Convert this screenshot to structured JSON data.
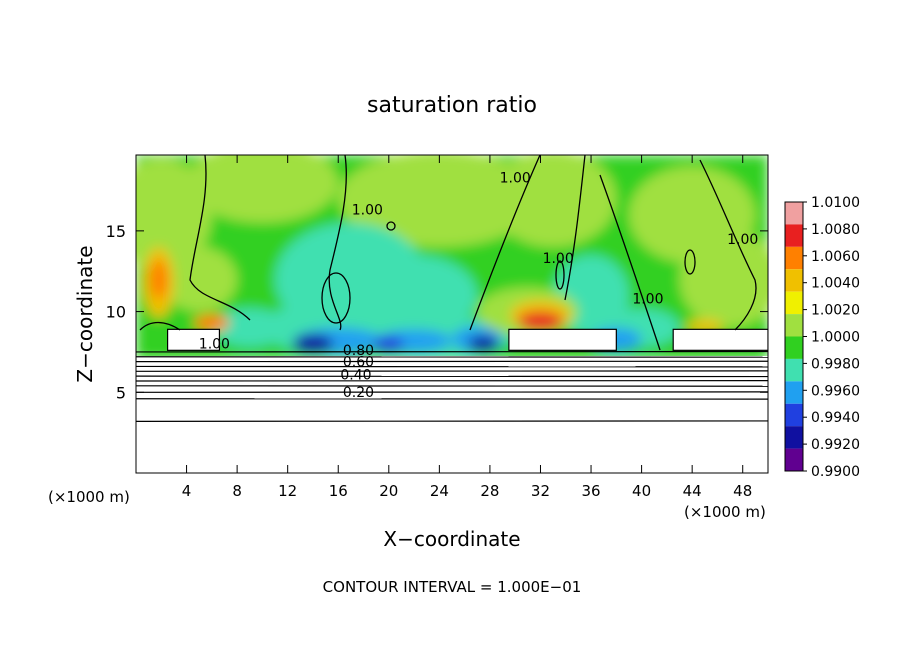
{
  "chart_data": {
    "type": "heatmap",
    "title": "saturation ratio",
    "xlabel": "X−coordinate",
    "ylabel": "Z−coordinate",
    "x_unit_left": "(×1000 m)",
    "x_unit_right": "(×1000 m)",
    "footer": "CONTOUR INTERVAL = 1.000E−01",
    "xlim": [
      0,
      50
    ],
    "ylim": [
      0,
      19.7
    ],
    "x_ticks": [
      4,
      8,
      12,
      16,
      20,
      24,
      28,
      32,
      36,
      40,
      44,
      48
    ],
    "y_ticks": [
      5,
      10,
      15
    ],
    "colorbar": {
      "labels": [
        "1.0100",
        "1.0080",
        "1.0060",
        "1.0040",
        "1.0020",
        "1.0000",
        "0.9980",
        "0.9960",
        "0.9940",
        "0.9920",
        "0.9900"
      ],
      "levels": [
        1.01,
        1.008,
        1.006,
        1.004,
        1.002,
        1.0,
        0.998,
        0.996,
        0.994,
        0.992,
        0.99
      ],
      "colors": [
        "#f0a0a0",
        "#e82020",
        "#ff8000",
        "#f0c000",
        "#f0f000",
        "#a0e040",
        "#30d020",
        "#40e0b0",
        "#20a0f0",
        "#2040e0",
        "#1010a0",
        "#600090"
      ]
    },
    "contour_labels": [
      {
        "text": "1.00",
        "x": 6.2,
        "z": 7.7
      },
      {
        "text": "0.80",
        "x": 17.6,
        "z": 7.3
      },
      {
        "text": "0.60",
        "x": 17.6,
        "z": 6.6
      },
      {
        "text": "0.40",
        "x": 17.4,
        "z": 5.8
      },
      {
        "text": "0.20",
        "x": 17.6,
        "z": 4.7
      },
      {
        "text": "1.00",
        "x": 18.3,
        "z": 16.0
      },
      {
        "text": "1.00",
        "x": 30.0,
        "z": 18.0
      },
      {
        "text": "1.00",
        "x": 33.4,
        "z": 13.0
      },
      {
        "text": "1.00",
        "x": 40.5,
        "z": 10.5
      },
      {
        "text": "1.00",
        "x": 48.0,
        "z": 14.2
      }
    ]
  }
}
